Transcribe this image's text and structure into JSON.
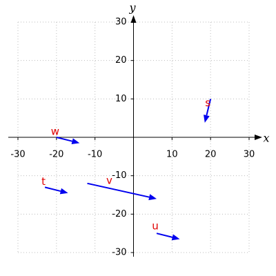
{
  "chart_data": {
    "type": "vector",
    "x_label": "x",
    "y_label": "y",
    "xlim": [
      -30,
      30
    ],
    "ylim": [
      -30,
      30
    ],
    "xticks": [
      -30,
      -20,
      -10,
      10,
      20,
      30
    ],
    "yticks": [
      -30,
      -20,
      -10,
      10,
      20,
      30
    ],
    "grid": true,
    "color": "#0000ee",
    "label_color": "#e00000",
    "vectors": [
      {
        "name": "s",
        "start": [
          20,
          10
        ],
        "end": [
          18.5,
          3.8
        ]
      },
      {
        "name": "w",
        "start": [
          -20,
          0
        ],
        "end": [
          -14,
          -1.5
        ]
      },
      {
        "name": "t",
        "start": [
          -23,
          -13
        ],
        "end": [
          -17,
          -14.5
        ]
      },
      {
        "name": "v",
        "start": [
          -12,
          -12
        ],
        "end": [
          6,
          -16
        ]
      },
      {
        "name": "u",
        "start": [
          6,
          -25
        ],
        "end": [
          12,
          -26.5
        ]
      }
    ]
  }
}
